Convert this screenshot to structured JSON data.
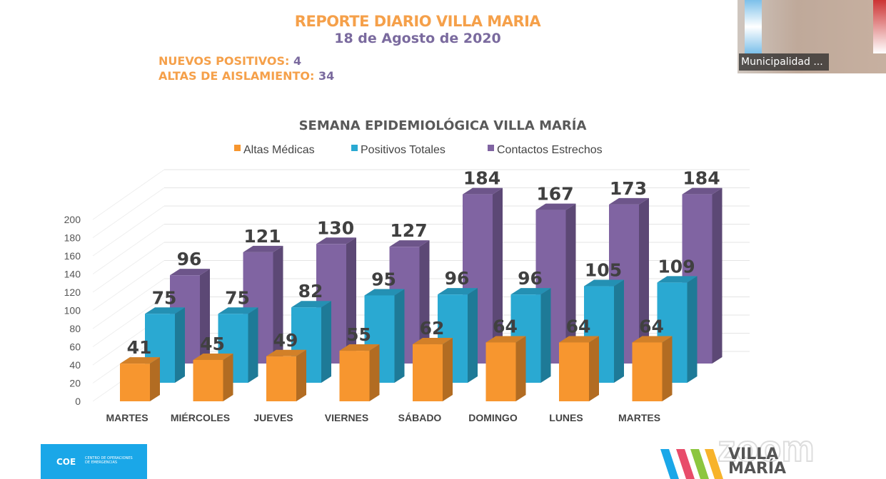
{
  "header": {
    "title": "REPORTE DIARIO VILLA MARIA",
    "date": "18 de Agosto de 2020"
  },
  "stats": [
    {
      "label": "NUEVOS POSITIVOS:",
      "value": "4"
    },
    {
      "label": "ALTAS DE AISLAMIENTO:",
      "value": "34"
    }
  ],
  "video": {
    "participant": "Municipalidad ..."
  },
  "logos": {
    "coe": "COE",
    "coe_sub": "CENTRO DE OPERACIONES DE EMERGENCIAS",
    "villa_maria": "VILLA MARÍA",
    "zoom": "zoom"
  },
  "chart_data": {
    "type": "bar",
    "title": "SEMANA EPIDEMIOLÓGICA VILLA MARÍA",
    "categories": [
      "MARTES",
      "MIÉRCOLES",
      "JUEVES",
      "VIERNES",
      "SÁBADO",
      "DOMINGO",
      "LUNES",
      "MARTES"
    ],
    "series": [
      {
        "name": "Altas Médicas",
        "color": "#f7962f",
        "values": [
          41,
          45,
          49,
          55,
          62,
          64,
          64,
          64
        ]
      },
      {
        "name": "Positivos Totales",
        "color": "#2aa9d2",
        "values": [
          75,
          75,
          82,
          95,
          96,
          96,
          105,
          109
        ]
      },
      {
        "name": "Contactos Estrechos",
        "color": "#8064a2",
        "values": [
          96,
          121,
          130,
          127,
          184,
          167,
          173,
          184
        ]
      }
    ],
    "yticks": [
      0,
      20,
      40,
      60,
      80,
      100,
      120,
      140,
      160,
      180,
      200
    ],
    "ylim": [
      0,
      200
    ],
    "legend": "top"
  }
}
